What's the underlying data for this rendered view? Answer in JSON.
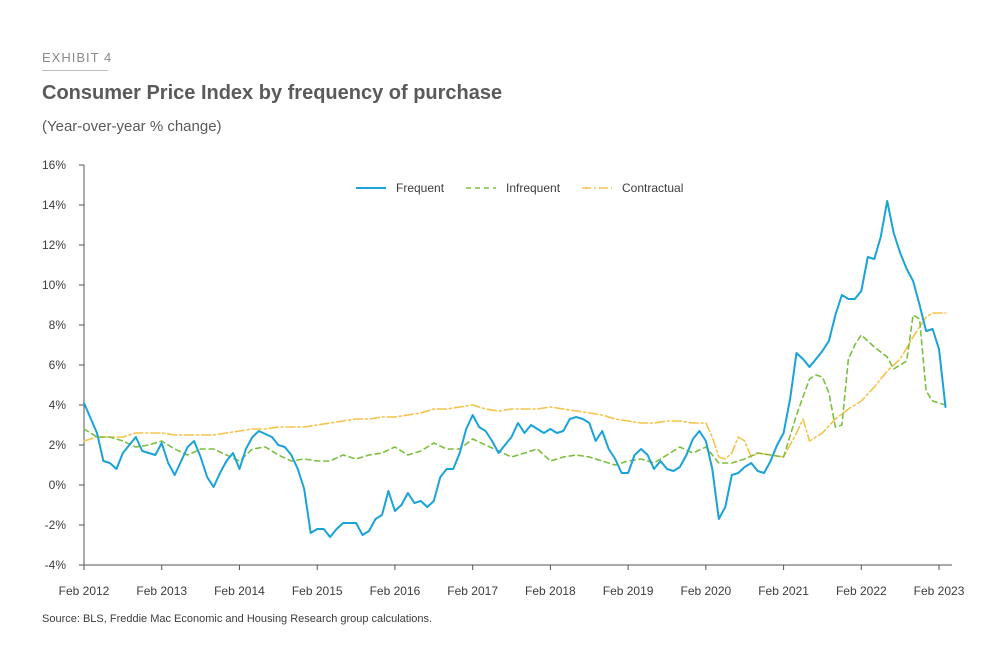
{
  "header": {
    "exhibit": "EXHIBIT 4",
    "title": "Consumer Price Index by frequency of purchase",
    "subtitle": "(Year-over-year % change)"
  },
  "footer": {
    "source": "Source: BLS, Freddie Mac Economic and Housing Research group calculations."
  },
  "chart_data": {
    "type": "line",
    "title": "Consumer Price Index by frequency of purchase",
    "subtitle": "(Year-over-year % change)",
    "xlabel": "",
    "ylabel": "",
    "ylim": [
      -4,
      16
    ],
    "yticks": [
      -4,
      -2,
      0,
      2,
      4,
      6,
      8,
      10,
      12,
      14,
      16
    ],
    "ytick_labels": [
      "-4%",
      "-2%",
      "0%",
      "2%",
      "4%",
      "6%",
      "8%",
      "10%",
      "12%",
      "14%",
      "16%"
    ],
    "x_range": [
      "2012-02",
      "2023-04"
    ],
    "x_ticks": [
      "2012-02",
      "2013-02",
      "2014-02",
      "2015-02",
      "2016-02",
      "2017-02",
      "2018-02",
      "2019-02",
      "2020-02",
      "2021-02",
      "2022-02",
      "2023-02"
    ],
    "x_tick_labels": [
      "Feb 2012",
      "Feb 2013",
      "Feb 2014",
      "Feb 2015",
      "Feb 2016",
      "Feb 2017",
      "Feb 2018",
      "Feb 2019",
      "Feb 2020",
      "Feb 2021",
      "Feb 2022",
      "Feb 2023"
    ],
    "grid": false,
    "legend_position": "top-center",
    "series": [
      {
        "name": "Frequent",
        "color": "#1aa3d8",
        "style": "solid",
        "points": [
          [
            "2012-02",
            4.1
          ],
          [
            "2012-04",
            2.6
          ],
          [
            "2012-05",
            1.2
          ],
          [
            "2012-06",
            1.1
          ],
          [
            "2012-07",
            0.8
          ],
          [
            "2012-08",
            1.6
          ],
          [
            "2012-10",
            2.4
          ],
          [
            "2012-11",
            1.7
          ],
          [
            "2013-01",
            1.5
          ],
          [
            "2013-02",
            2.1
          ],
          [
            "2013-03",
            1.1
          ],
          [
            "2013-04",
            0.5
          ],
          [
            "2013-05",
            1.2
          ],
          [
            "2013-06",
            1.9
          ],
          [
            "2013-07",
            2.2
          ],
          [
            "2013-08",
            1.4
          ],
          [
            "2013-09",
            0.4
          ],
          [
            "2013-10",
            -0.1
          ],
          [
            "2013-11",
            0.6
          ],
          [
            "2013-12",
            1.2
          ],
          [
            "2014-01",
            1.6
          ],
          [
            "2014-02",
            0.8
          ],
          [
            "2014-03",
            1.8
          ],
          [
            "2014-04",
            2.4
          ],
          [
            "2014-05",
            2.7
          ],
          [
            "2014-07",
            2.4
          ],
          [
            "2014-08",
            2.0
          ],
          [
            "2014-09",
            1.9
          ],
          [
            "2014-10",
            1.5
          ],
          [
            "2014-11",
            0.8
          ],
          [
            "2014-12",
            -0.2
          ],
          [
            "2015-01",
            -2.4
          ],
          [
            "2015-02",
            -2.2
          ],
          [
            "2015-03",
            -2.2
          ],
          [
            "2015-04",
            -2.6
          ],
          [
            "2015-05",
            -2.2
          ],
          [
            "2015-06",
            -1.9
          ],
          [
            "2015-08",
            -1.9
          ],
          [
            "2015-09",
            -2.5
          ],
          [
            "2015-10",
            -2.3
          ],
          [
            "2015-11",
            -1.7
          ],
          [
            "2015-12",
            -1.5
          ],
          [
            "2016-01",
            -0.3
          ],
          [
            "2016-02",
            -1.3
          ],
          [
            "2016-03",
            -1.0
          ],
          [
            "2016-04",
            -0.4
          ],
          [
            "2016-05",
            -0.9
          ],
          [
            "2016-06",
            -0.8
          ],
          [
            "2016-07",
            -1.1
          ],
          [
            "2016-08",
            -0.8
          ],
          [
            "2016-09",
            0.4
          ],
          [
            "2016-10",
            0.8
          ],
          [
            "2016-11",
            0.8
          ],
          [
            "2016-12",
            1.6
          ],
          [
            "2017-01",
            2.8
          ],
          [
            "2017-02",
            3.5
          ],
          [
            "2017-03",
            2.9
          ],
          [
            "2017-04",
            2.7
          ],
          [
            "2017-05",
            2.2
          ],
          [
            "2017-06",
            1.6
          ],
          [
            "2017-07",
            2.0
          ],
          [
            "2017-08",
            2.4
          ],
          [
            "2017-09",
            3.1
          ],
          [
            "2017-10",
            2.6
          ],
          [
            "2017-11",
            3.0
          ],
          [
            "2017-12",
            2.8
          ],
          [
            "2018-01",
            2.6
          ],
          [
            "2018-02",
            2.8
          ],
          [
            "2018-03",
            2.6
          ],
          [
            "2018-04",
            2.7
          ],
          [
            "2018-05",
            3.3
          ],
          [
            "2018-06",
            3.4
          ],
          [
            "2018-07",
            3.3
          ],
          [
            "2018-08",
            3.1
          ],
          [
            "2018-09",
            2.2
          ],
          [
            "2018-10",
            2.7
          ],
          [
            "2018-11",
            1.8
          ],
          [
            "2018-12",
            1.3
          ],
          [
            "2019-01",
            0.6
          ],
          [
            "2019-02",
            0.6
          ],
          [
            "2019-03",
            1.5
          ],
          [
            "2019-04",
            1.8
          ],
          [
            "2019-05",
            1.5
          ],
          [
            "2019-06",
            0.8
          ],
          [
            "2019-07",
            1.2
          ],
          [
            "2019-08",
            0.8
          ],
          [
            "2019-09",
            0.7
          ],
          [
            "2019-10",
            0.9
          ],
          [
            "2019-11",
            1.5
          ],
          [
            "2019-12",
            2.3
          ],
          [
            "2020-01",
            2.7
          ],
          [
            "2020-02",
            2.2
          ],
          [
            "2020-03",
            0.8
          ],
          [
            "2020-04",
            -1.7
          ],
          [
            "2020-05",
            -1.1
          ],
          [
            "2020-06",
            0.5
          ],
          [
            "2020-07",
            0.6
          ],
          [
            "2020-08",
            0.9
          ],
          [
            "2020-09",
            1.1
          ],
          [
            "2020-10",
            0.7
          ],
          [
            "2020-11",
            0.6
          ],
          [
            "2020-12",
            1.2
          ],
          [
            "2021-01",
            2.0
          ],
          [
            "2021-02",
            2.6
          ],
          [
            "2021-03",
            4.3
          ],
          [
            "2021-04",
            6.6
          ],
          [
            "2021-05",
            6.3
          ],
          [
            "2021-06",
            5.9
          ],
          [
            "2021-07",
            6.3
          ],
          [
            "2021-08",
            6.7
          ],
          [
            "2021-09",
            7.2
          ],
          [
            "2021-10",
            8.5
          ],
          [
            "2021-11",
            9.5
          ],
          [
            "2021-12",
            9.3
          ],
          [
            "2022-01",
            9.3
          ],
          [
            "2022-02",
            9.7
          ],
          [
            "2022-03",
            11.4
          ],
          [
            "2022-04",
            11.3
          ],
          [
            "2022-05",
            12.4
          ],
          [
            "2022-06",
            14.2
          ],
          [
            "2022-07",
            12.6
          ],
          [
            "2022-08",
            11.6
          ],
          [
            "2022-09",
            10.8
          ],
          [
            "2022-10",
            10.2
          ],
          [
            "2022-11",
            9.0
          ],
          [
            "2022-12",
            7.7
          ],
          [
            "2023-01",
            7.8
          ],
          [
            "2023-02",
            6.8
          ],
          [
            "2023-03",
            3.9
          ]
        ]
      },
      {
        "name": "Infrequent",
        "color": "#7bbf3e",
        "style": "dashed",
        "points": [
          [
            "2012-02",
            2.8
          ],
          [
            "2012-04",
            2.4
          ],
          [
            "2012-06",
            2.4
          ],
          [
            "2012-08",
            2.2
          ],
          [
            "2012-10",
            1.9
          ],
          [
            "2012-12",
            2.0
          ],
          [
            "2013-02",
            2.2
          ],
          [
            "2013-04",
            1.8
          ],
          [
            "2013-06",
            1.5
          ],
          [
            "2013-08",
            1.8
          ],
          [
            "2013-10",
            1.8
          ],
          [
            "2013-12",
            1.5
          ],
          [
            "2014-02",
            1.2
          ],
          [
            "2014-04",
            1.8
          ],
          [
            "2014-06",
            1.9
          ],
          [
            "2014-08",
            1.5
          ],
          [
            "2014-10",
            1.2
          ],
          [
            "2014-12",
            1.3
          ],
          [
            "2015-02",
            1.2
          ],
          [
            "2015-04",
            1.2
          ],
          [
            "2015-06",
            1.5
          ],
          [
            "2015-08",
            1.3
          ],
          [
            "2015-10",
            1.5
          ],
          [
            "2015-12",
            1.6
          ],
          [
            "2016-02",
            1.9
          ],
          [
            "2016-04",
            1.5
          ],
          [
            "2016-06",
            1.7
          ],
          [
            "2016-08",
            2.1
          ],
          [
            "2016-10",
            1.8
          ],
          [
            "2016-12",
            1.8
          ],
          [
            "2017-02",
            2.3
          ],
          [
            "2017-04",
            2.0
          ],
          [
            "2017-06",
            1.7
          ],
          [
            "2017-08",
            1.4
          ],
          [
            "2017-10",
            1.6
          ],
          [
            "2017-12",
            1.8
          ],
          [
            "2018-02",
            1.2
          ],
          [
            "2018-04",
            1.4
          ],
          [
            "2018-06",
            1.5
          ],
          [
            "2018-08",
            1.4
          ],
          [
            "2018-10",
            1.2
          ],
          [
            "2018-12",
            1.0
          ],
          [
            "2019-02",
            1.2
          ],
          [
            "2019-04",
            1.3
          ],
          [
            "2019-06",
            1.1
          ],
          [
            "2019-08",
            1.5
          ],
          [
            "2019-10",
            1.9
          ],
          [
            "2019-12",
            1.6
          ],
          [
            "2020-02",
            1.9
          ],
          [
            "2020-04",
            1.1
          ],
          [
            "2020-06",
            1.1
          ],
          [
            "2020-08",
            1.3
          ],
          [
            "2020-10",
            1.6
          ],
          [
            "2020-12",
            1.5
          ],
          [
            "2021-02",
            1.4
          ],
          [
            "2021-04",
            3.5
          ],
          [
            "2021-05",
            4.4
          ],
          [
            "2021-06",
            5.3
          ],
          [
            "2021-07",
            5.5
          ],
          [
            "2021-08",
            5.4
          ],
          [
            "2021-09",
            4.6
          ],
          [
            "2021-10",
            2.9
          ],
          [
            "2021-11",
            3.0
          ],
          [
            "2021-12",
            6.3
          ],
          [
            "2022-01",
            7.0
          ],
          [
            "2022-02",
            7.5
          ],
          [
            "2022-04",
            6.9
          ],
          [
            "2022-06",
            6.4
          ],
          [
            "2022-07",
            5.8
          ],
          [
            "2022-08",
            6.0
          ],
          [
            "2022-09",
            6.2
          ],
          [
            "2022-10",
            8.5
          ],
          [
            "2022-11",
            8.3
          ],
          [
            "2022-12",
            4.7
          ],
          [
            "2023-01",
            4.2
          ],
          [
            "2023-03",
            4.0
          ]
        ]
      },
      {
        "name": "Contractual",
        "color": "#f5c34b",
        "style": "dash-dot",
        "points": [
          [
            "2012-02",
            2.2
          ],
          [
            "2012-04",
            2.4
          ],
          [
            "2012-06",
            2.4
          ],
          [
            "2012-08",
            2.4
          ],
          [
            "2012-10",
            2.6
          ],
          [
            "2012-12",
            2.6
          ],
          [
            "2013-02",
            2.6
          ],
          [
            "2013-04",
            2.5
          ],
          [
            "2013-06",
            2.5
          ],
          [
            "2013-08",
            2.5
          ],
          [
            "2013-10",
            2.5
          ],
          [
            "2013-12",
            2.6
          ],
          [
            "2014-02",
            2.7
          ],
          [
            "2014-04",
            2.8
          ],
          [
            "2014-06",
            2.8
          ],
          [
            "2014-08",
            2.9
          ],
          [
            "2014-10",
            2.9
          ],
          [
            "2014-12",
            2.9
          ],
          [
            "2015-02",
            3.0
          ],
          [
            "2015-04",
            3.1
          ],
          [
            "2015-06",
            3.2
          ],
          [
            "2015-08",
            3.3
          ],
          [
            "2015-10",
            3.3
          ],
          [
            "2015-12",
            3.4
          ],
          [
            "2016-02",
            3.4
          ],
          [
            "2016-04",
            3.5
          ],
          [
            "2016-06",
            3.6
          ],
          [
            "2016-08",
            3.8
          ],
          [
            "2016-10",
            3.8
          ],
          [
            "2016-12",
            3.9
          ],
          [
            "2017-02",
            4.0
          ],
          [
            "2017-04",
            3.8
          ],
          [
            "2017-06",
            3.7
          ],
          [
            "2017-08",
            3.8
          ],
          [
            "2017-10",
            3.8
          ],
          [
            "2017-12",
            3.8
          ],
          [
            "2018-02",
            3.9
          ],
          [
            "2018-04",
            3.8
          ],
          [
            "2018-06",
            3.7
          ],
          [
            "2018-08",
            3.6
          ],
          [
            "2018-10",
            3.5
          ],
          [
            "2018-12",
            3.3
          ],
          [
            "2019-02",
            3.2
          ],
          [
            "2019-04",
            3.1
          ],
          [
            "2019-06",
            3.1
          ],
          [
            "2019-08",
            3.2
          ],
          [
            "2019-10",
            3.2
          ],
          [
            "2019-12",
            3.1
          ],
          [
            "2020-02",
            3.1
          ],
          [
            "2020-03",
            2.4
          ],
          [
            "2020-04",
            1.4
          ],
          [
            "2020-05",
            1.3
          ],
          [
            "2020-06",
            1.6
          ],
          [
            "2020-07",
            2.4
          ],
          [
            "2020-08",
            2.2
          ],
          [
            "2020-09",
            1.4
          ],
          [
            "2020-10",
            1.6
          ],
          [
            "2020-12",
            1.5
          ],
          [
            "2021-02",
            1.4
          ],
          [
            "2021-04",
            2.6
          ],
          [
            "2021-05",
            3.3
          ],
          [
            "2021-06",
            2.2
          ],
          [
            "2021-08",
            2.6
          ],
          [
            "2021-10",
            3.3
          ],
          [
            "2021-12",
            3.8
          ],
          [
            "2022-02",
            4.2
          ],
          [
            "2022-04",
            4.9
          ],
          [
            "2022-06",
            5.7
          ],
          [
            "2022-08",
            6.3
          ],
          [
            "2022-10",
            7.4
          ],
          [
            "2022-12",
            8.4
          ],
          [
            "2023-01",
            8.6
          ],
          [
            "2023-03",
            8.6
          ]
        ]
      }
    ]
  }
}
